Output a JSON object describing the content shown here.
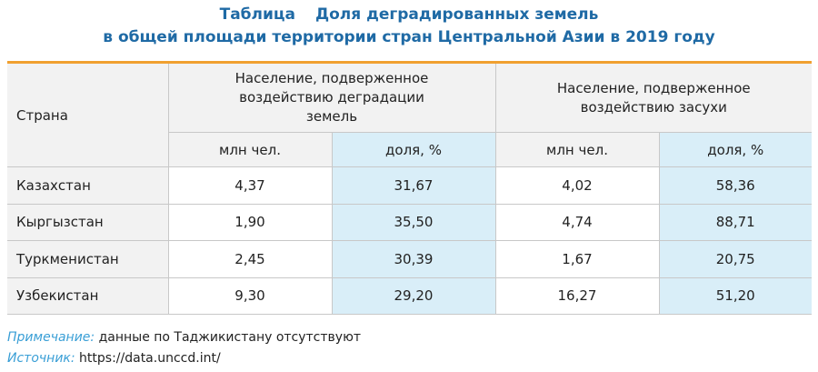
{
  "title": {
    "label": "Таблица",
    "text": "Доля деградированных земель",
    "line2": "в общей площади территории стран Центральной Азии в 2019 году"
  },
  "table": {
    "header": {
      "country": "Страна",
      "groups": [
        "Население, подверженное воздействию деградации земель",
        "Население, подверженное воздействию засухи"
      ],
      "sub": [
        "млн чел.",
        "доля, %",
        "млн чел.",
        "доля, %"
      ]
    },
    "rows": [
      [
        "Казахстан",
        "4,37",
        "31,67",
        "4,02",
        "58,36"
      ],
      [
        "Кыргызстан",
        "1,90",
        "35,50",
        "4,74",
        "88,71"
      ],
      [
        "Туркменистан",
        "2,45",
        "30,39",
        "1,67",
        "20,75"
      ],
      [
        "Узбекистан",
        "9,30",
        "29,20",
        "16,27",
        "51,20"
      ]
    ]
  },
  "notes": [
    {
      "label": "Примечание:",
      "text": "данные по Таджикистану отсутствуют"
    },
    {
      "label": "Источник:",
      "text": "https://data.unccd.int/"
    }
  ]
}
